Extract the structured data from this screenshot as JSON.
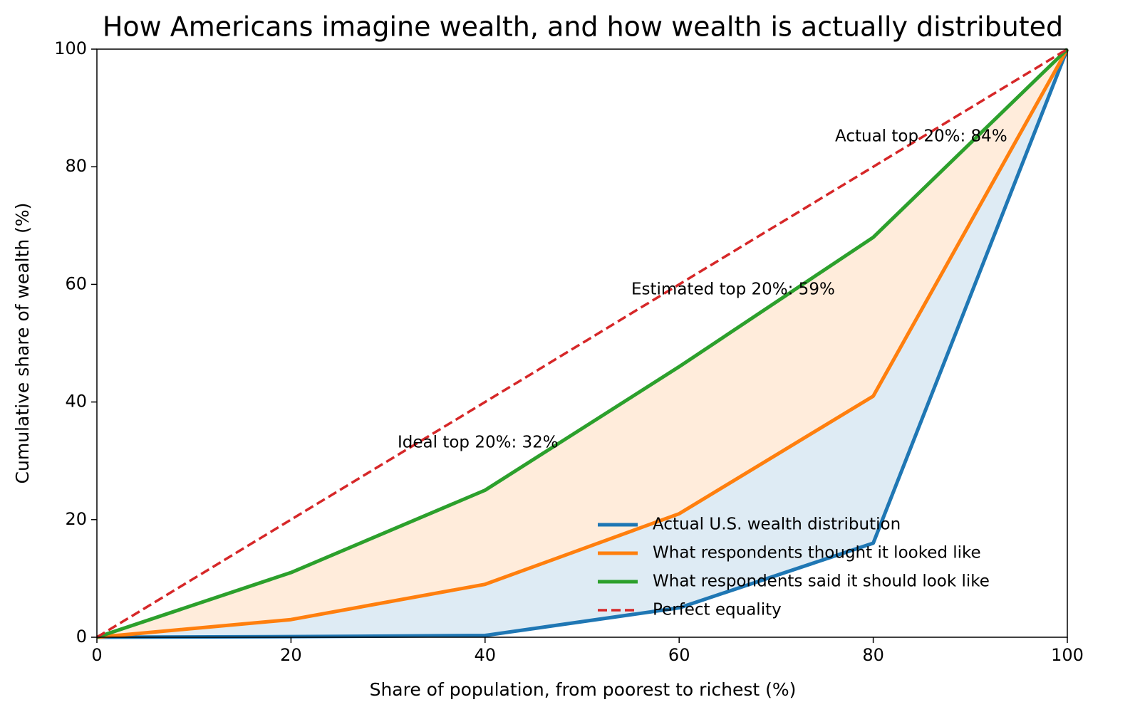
{
  "chart_data": {
    "type": "line",
    "title": "How Americans imagine wealth, and how wealth is actually distributed",
    "x_label": "Share of population, from poorest to richest (%)",
    "y_label": "Cumulative share of wealth (%)",
    "x": [
      0,
      20,
      40,
      60,
      80,
      100
    ],
    "series": [
      {
        "name": "Actual U.S. wealth distribution",
        "color": "#1f77b4",
        "values": [
          0,
          0.1,
          0.3,
          5,
          16,
          100
        ]
      },
      {
        "name": "What respondents thought it looked like",
        "color": "#ff7f0e",
        "values": [
          0,
          3,
          9,
          21,
          41,
          100
        ]
      },
      {
        "name": "What respondents said it should look like",
        "color": "#2ca02c",
        "values": [
          0,
          11,
          25,
          46,
          68,
          100
        ]
      },
      {
        "name": "Perfect equality",
        "color": "#d62728",
        "dashed": true,
        "values": [
          0,
          20,
          40,
          60,
          80,
          100
        ]
      }
    ],
    "annotations": [
      "Ideal top 20%: 32%",
      "Estimated top 20%: 59%",
      "Actual top 20%: 84%"
    ],
    "xlim": [
      0,
      100
    ],
    "ylim": [
      0,
      100
    ],
    "xticks": [
      0,
      20,
      40,
      60,
      80,
      100
    ],
    "yticks": [
      0,
      20,
      40,
      60,
      80,
      100
    ],
    "grid": false,
    "legend": "lower right"
  }
}
